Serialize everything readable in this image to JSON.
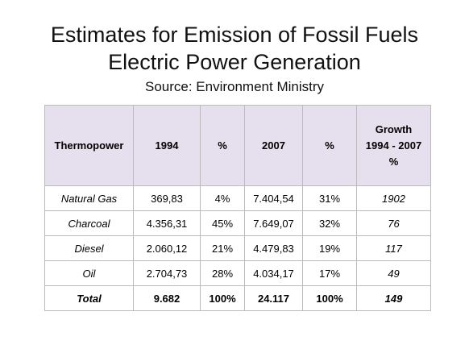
{
  "title": [
    "Estimates for Emission of Fossil Fuels",
    "Electric Power Generation"
  ],
  "source": "Source: Environment Ministry",
  "table": {
    "header": [
      "Thermopower",
      "1994",
      "%",
      "2007",
      "%",
      [
        "Growth",
        "1994 - 2007",
        "%"
      ]
    ],
    "rows": [
      [
        "Natural Gas",
        "369,83",
        "4%",
        "7.404,54",
        "31%",
        "1902"
      ],
      [
        "Charcoal",
        "4.356,31",
        "45%",
        "7.649,07",
        "32%",
        "76"
      ],
      [
        "Diesel",
        "2.060,12",
        "21%",
        "4.479,83",
        "19%",
        "117"
      ],
      [
        "Oil",
        "2.704,73",
        "28%",
        "4.034,17",
        "17%",
        "49"
      ],
      [
        "Total",
        "9.682",
        "100%",
        "24.117",
        "100%",
        "149"
      ]
    ]
  }
}
